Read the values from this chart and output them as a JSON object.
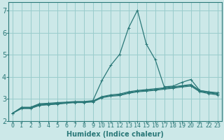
{
  "x": [
    0,
    1,
    2,
    3,
    4,
    5,
    6,
    7,
    8,
    9,
    10,
    11,
    12,
    13,
    14,
    15,
    16,
    17,
    18,
    19,
    20,
    21,
    22,
    23
  ],
  "series": [
    [
      2.35,
      2.62,
      2.62,
      2.78,
      2.8,
      2.83,
      2.85,
      2.88,
      2.88,
      2.92,
      3.82,
      4.52,
      5.02,
      6.22,
      7.02,
      5.48,
      4.78,
      3.55,
      3.58,
      3.75,
      3.88,
      3.38,
      3.32,
      3.28
    ],
    [
      2.35,
      2.6,
      2.6,
      2.75,
      2.77,
      2.8,
      2.83,
      2.86,
      2.86,
      2.9,
      3.1,
      3.18,
      3.22,
      3.32,
      3.38,
      3.42,
      3.46,
      3.5,
      3.55,
      3.6,
      3.65,
      3.38,
      3.3,
      3.24
    ],
    [
      2.35,
      2.58,
      2.58,
      2.72,
      2.75,
      2.78,
      2.82,
      2.85,
      2.85,
      2.88,
      3.08,
      3.15,
      3.18,
      3.28,
      3.35,
      3.38,
      3.42,
      3.48,
      3.52,
      3.58,
      3.62,
      3.35,
      3.28,
      3.22
    ],
    [
      2.35,
      2.56,
      2.56,
      2.7,
      2.73,
      2.76,
      2.8,
      2.83,
      2.83,
      2.86,
      3.05,
      3.12,
      3.15,
      3.25,
      3.32,
      3.35,
      3.39,
      3.44,
      3.48,
      3.54,
      3.58,
      3.32,
      3.24,
      3.18
    ]
  ],
  "line_color": "#2a7878",
  "bg_color": "#cce8e8",
  "grid_color": "#99cccc",
  "xlabel": "Humidex (Indice chaleur)",
  "ylim": [
    2.0,
    7.4
  ],
  "xlim": [
    -0.5,
    23.5
  ],
  "yticks": [
    2,
    3,
    4,
    5,
    6,
    7
  ],
  "xticks": [
    0,
    1,
    2,
    3,
    4,
    5,
    6,
    7,
    8,
    9,
    10,
    11,
    12,
    13,
    14,
    15,
    16,
    17,
    18,
    19,
    20,
    21,
    22,
    23
  ],
  "xlabel_fontsize": 7,
  "tick_fontsize": 6,
  "ytick_fontsize": 7,
  "marker": "+",
  "markersize": 3,
  "linewidth": 0.9
}
